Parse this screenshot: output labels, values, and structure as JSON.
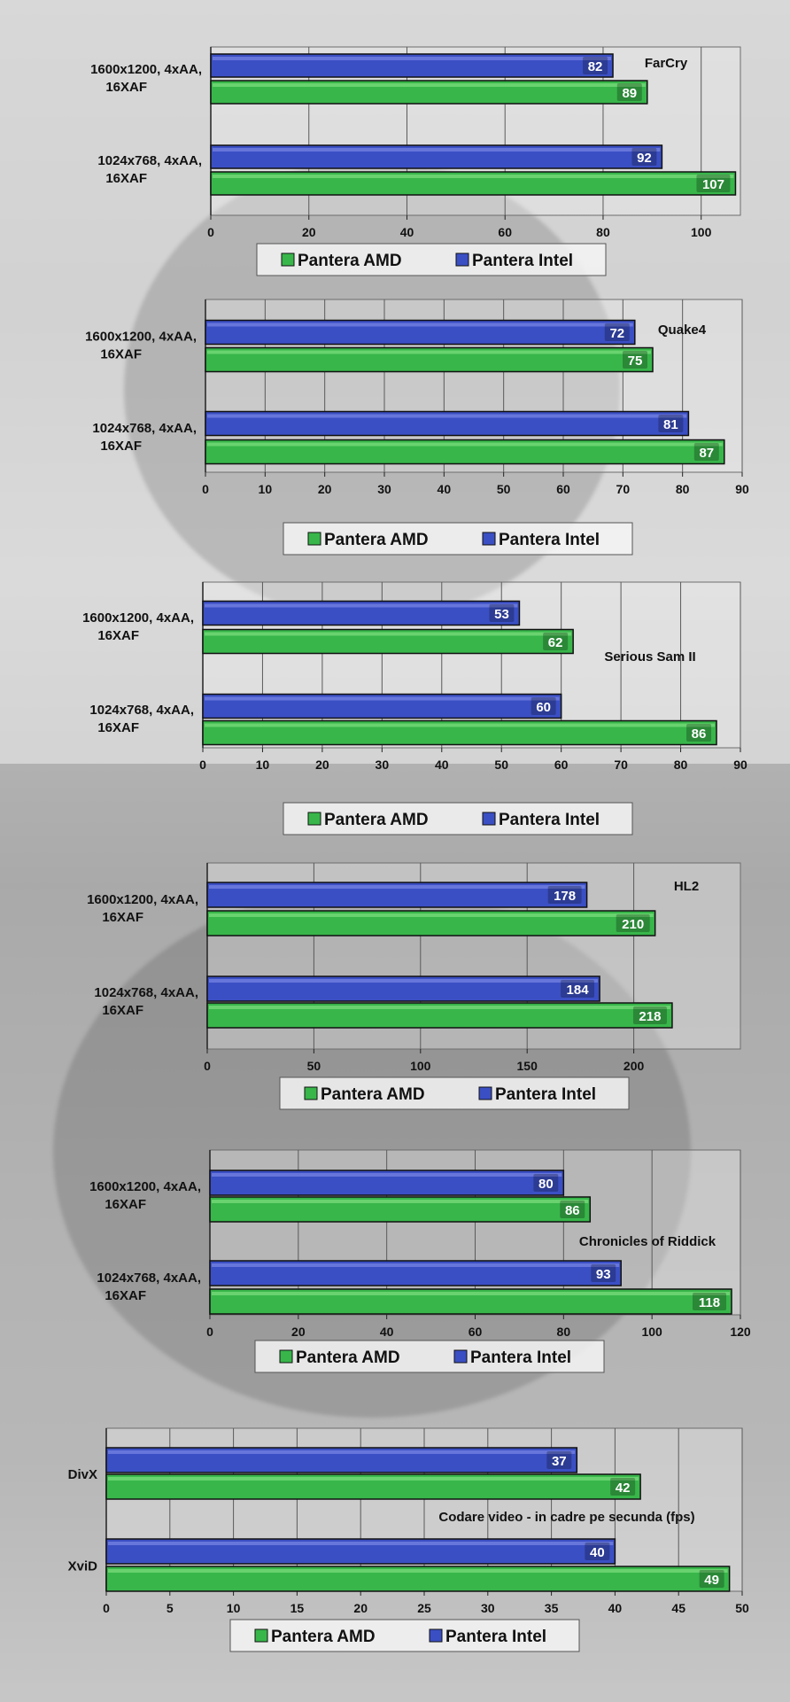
{
  "chart_data": [
    {
      "type": "bar",
      "orientation": "horizontal",
      "title": "FarCry",
      "categories": [
        "1600x1200, 4xAA, 16XAF",
        "1024x768, 4xAA, 16XAF"
      ],
      "series": [
        {
          "name": "Pantera Intel",
          "color": "#3b4fc4",
          "values": [
            82,
            92
          ]
        },
        {
          "name": "Pantera AMD",
          "color": "#3fbf45",
          "values": [
            89,
            107
          ]
        }
      ],
      "xlim": [
        0,
        108
      ],
      "ticks": [
        0,
        20,
        40,
        60,
        80,
        100
      ],
      "grid": true,
      "legend_placement": "bottom"
    },
    {
      "type": "bar",
      "orientation": "horizontal",
      "title": "Quake4",
      "categories": [
        "1600x1200, 4xAA, 16XAF",
        "1024x768, 4xAA, 16XAF"
      ],
      "series": [
        {
          "name": "Pantera Intel",
          "color": "#3b4fc4",
          "values": [
            72,
            81
          ]
        },
        {
          "name": "Pantera AMD",
          "color": "#3fbf45",
          "values": [
            75,
            87
          ]
        }
      ],
      "xlim": [
        0,
        90
      ],
      "ticks": [
        0,
        10,
        20,
        30,
        40,
        50,
        60,
        70,
        80,
        90
      ],
      "grid": true,
      "legend_placement": "bottom"
    },
    {
      "type": "bar",
      "orientation": "horizontal",
      "title": "Serious Sam II",
      "categories": [
        "1600x1200, 4xAA, 16XAF",
        "1024x768, 4xAA, 16XAF"
      ],
      "series": [
        {
          "name": "Pantera Intel",
          "color": "#3b4fc4",
          "values": [
            53,
            60
          ]
        },
        {
          "name": "Pantera AMD",
          "color": "#3fbf45",
          "values": [
            62,
            86
          ]
        }
      ],
      "xlim": [
        0,
        90
      ],
      "ticks": [
        0,
        10,
        20,
        30,
        40,
        50,
        60,
        70,
        80,
        90
      ],
      "grid": true,
      "legend_placement": "bottom"
    },
    {
      "type": "bar",
      "orientation": "horizontal",
      "title": "HL2",
      "categories": [
        "1600x1200, 4xAA, 16XAF",
        "1024x768, 4xAA, 16XAF"
      ],
      "series": [
        {
          "name": "Pantera Intel",
          "color": "#3b4fc4",
          "values": [
            178,
            184
          ]
        },
        {
          "name": "Pantera AMD",
          "color": "#3fbf45",
          "values": [
            210,
            218
          ]
        }
      ],
      "xlim": [
        0,
        250
      ],
      "ticks": [
        0,
        50,
        100,
        150,
        200
      ],
      "grid": true,
      "legend_placement": "bottom"
    },
    {
      "type": "bar",
      "orientation": "horizontal",
      "title": "Chronicles of Riddick",
      "categories": [
        "1600x1200, 4xAA, 16XAF",
        "1024x768, 4xAA, 16XAF"
      ],
      "series": [
        {
          "name": "Pantera Intel",
          "color": "#3b4fc4",
          "values": [
            80,
            93
          ]
        },
        {
          "name": "Pantera AMD",
          "color": "#3fbf45",
          "values": [
            86,
            118
          ]
        }
      ],
      "xlim": [
        0,
        120
      ],
      "ticks": [
        0,
        20,
        40,
        60,
        80,
        100,
        120
      ],
      "grid": true,
      "legend_placement": "bottom"
    },
    {
      "type": "bar",
      "orientation": "horizontal",
      "title": "Codare video -  in cadre pe secunda (fps)",
      "categories": [
        "DivX",
        "XviD"
      ],
      "series": [
        {
          "name": "Pantera Intel",
          "color": "#3b4fc4",
          "values": [
            37,
            40
          ]
        },
        {
          "name": "Pantera AMD",
          "color": "#3fbf45",
          "values": [
            42,
            49
          ]
        }
      ],
      "xlim": [
        0,
        50
      ],
      "ticks": [
        0,
        5,
        10,
        15,
        20,
        25,
        30,
        35,
        40,
        45,
        50
      ],
      "grid": true,
      "legend_placement": "bottom"
    }
  ]
}
